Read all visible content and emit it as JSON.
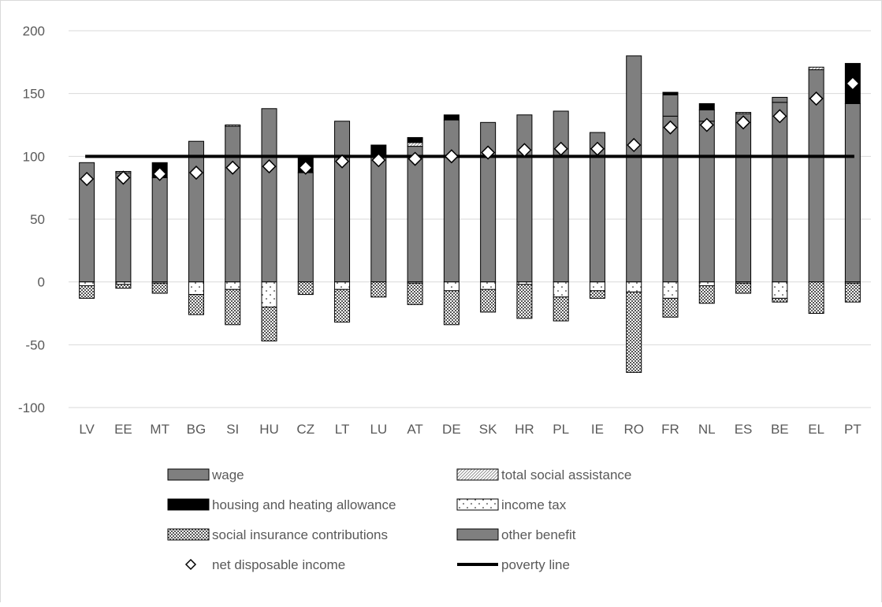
{
  "chart_data": {
    "type": "bar",
    "stacked": true,
    "categories": [
      "LV",
      "EE",
      "MT",
      "BG",
      "SI",
      "HU",
      "CZ",
      "LT",
      "LU",
      "AT",
      "DE",
      "SK",
      "HR",
      "PL",
      "IE",
      "RO",
      "FR",
      "NL",
      "ES",
      "BE",
      "EL",
      "PT"
    ],
    "ylim": [
      -100,
      200
    ],
    "yticks": [
      -100,
      -50,
      0,
      50,
      100,
      150,
      200
    ],
    "ytick_labels": [
      "-100",
      "-50",
      "0",
      "50",
      "100",
      "150",
      "200"
    ],
    "grid": true,
    "legend_position": "bottom",
    "title": "",
    "xlabel": "",
    "ylabel": "",
    "series": [
      {
        "name": "wage",
        "key": "wage",
        "fill": "#7f7f7f",
        "values": [
          95,
          87,
          83,
          112,
          124,
          138,
          87,
          128,
          100,
          108,
          129,
          127,
          133,
          136,
          119,
          180,
          132,
          128,
          134,
          143,
          169,
          142
        ]
      },
      {
        "name": "total social assistance",
        "key": "social_assistance",
        "fill": "#d9d9d9",
        "pattern": "diagonal",
        "values": [
          0,
          1,
          0,
          0,
          1,
          0,
          0,
          0,
          0,
          3,
          0,
          0,
          0,
          0,
          0,
          0,
          0,
          0,
          1,
          0,
          2,
          0
        ]
      },
      {
        "name": "housing and heating allowance",
        "key": "housing",
        "fill": "#000000",
        "values": [
          0,
          0,
          12,
          0,
          0,
          0,
          13,
          0,
          9,
          4,
          4,
          0,
          0,
          0,
          0,
          0,
          2,
          5,
          0,
          0,
          0,
          32
        ]
      },
      {
        "name": "income tax",
        "key": "income_tax",
        "fill": "#ffffff",
        "pattern": "dots",
        "values": [
          -3,
          -2,
          -1,
          -10,
          -6,
          -20,
          0,
          -6,
          0,
          -1,
          -7,
          -6,
          -2,
          -12,
          -7,
          -8,
          -13,
          -3,
          -1,
          -13,
          0,
          -1
        ]
      },
      {
        "name": "social insurance contributions",
        "key": "social_insurance",
        "fill": "#9a9a9a",
        "pattern": "crosshatch",
        "values": [
          -10,
          -3,
          -8,
          -16,
          -28,
          -27,
          -10,
          -26,
          -12,
          -17,
          -27,
          -18,
          -27,
          -19,
          -6,
          -64,
          -15,
          -14,
          -8,
          -3,
          -25,
          -15
        ]
      },
      {
        "name": "other benefit",
        "key": "other_benefit",
        "fill": "#7f7f7f",
        "values": [
          0,
          0,
          0,
          0,
          0,
          0,
          0,
          0,
          0,
          0,
          0,
          0,
          0,
          0,
          0,
          0,
          17,
          9,
          0,
          4,
          0,
          0
        ]
      },
      {
        "name": "net disposable income",
        "key": "net_income",
        "marker": "diamond",
        "values": [
          82,
          83,
          86,
          87,
          91,
          92,
          91,
          96,
          97,
          98,
          100,
          103,
          105,
          106,
          106,
          109,
          123,
          125,
          127,
          132,
          146,
          158
        ]
      },
      {
        "name": "poverty line",
        "key": "poverty_line",
        "line": true,
        "value": 100
      }
    ]
  }
}
